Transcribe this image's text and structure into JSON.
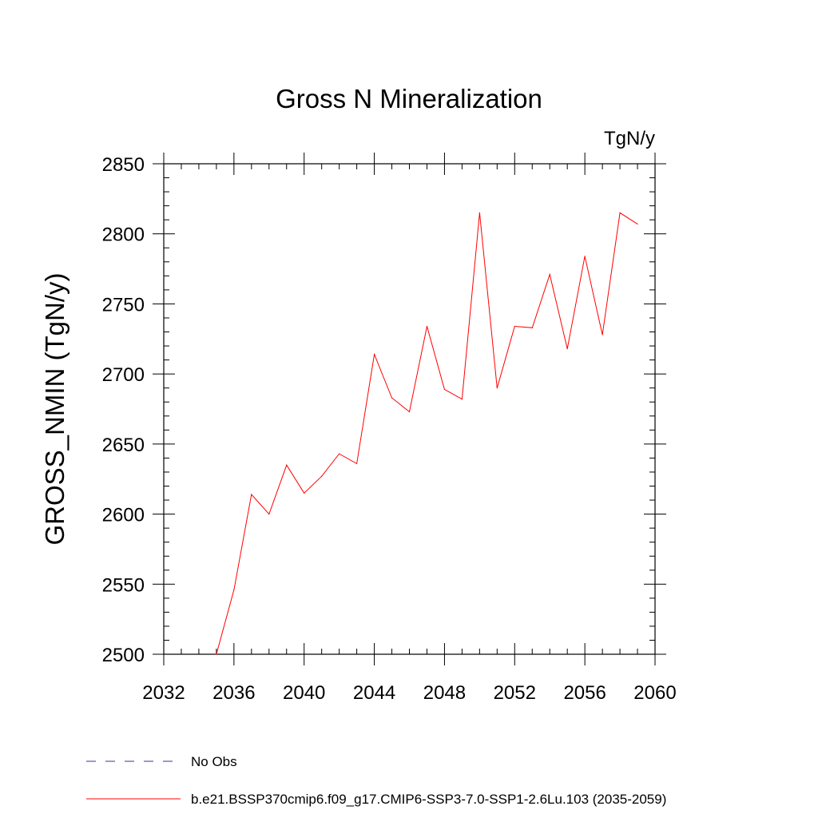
{
  "chart_data": {
    "type": "line",
    "title": "Gross N Mineralization",
    "units_label": "TgN/y",
    "ylabel": "GROSS_NMIN  (TgN/y)",
    "xlabel": "",
    "xlim": [
      2032,
      2060
    ],
    "ylim": [
      2500,
      2850
    ],
    "x_ticks": [
      "2032",
      "2036",
      "2040",
      "2044",
      "2048",
      "2052",
      "2056",
      "2060"
    ],
    "y_ticks": [
      "2500",
      "2550",
      "2600",
      "2650",
      "2700",
      "2750",
      "2800",
      "2850"
    ],
    "grid": false,
    "legend_position": "bottom",
    "colors": {
      "series": "#ff0000",
      "obs": "#3333aa",
      "axis": "#000000"
    },
    "series": [
      {
        "name": "b.e21.BSSP370cmip6.f09_g17.CMIP6-SSP3-7.0-SSP1-2.6Lu.103 (2035-2059)",
        "x": [
          2035,
          2036,
          2037,
          2038,
          2039,
          2040,
          2041,
          2042,
          2043,
          2044,
          2045,
          2046,
          2047,
          2048,
          2049,
          2050,
          2051,
          2052,
          2053,
          2054,
          2055,
          2056,
          2057,
          2058,
          2059
        ],
        "values": [
          2500,
          2546,
          2614,
          2600,
          2635,
          2615,
          2627,
          2643,
          2636,
          2714,
          2683,
          2673,
          2734,
          2689,
          2682,
          2815,
          2690,
          2734,
          2733,
          2771,
          2718,
          2784,
          2728,
          2815,
          2807
        ]
      }
    ],
    "legend": [
      {
        "label": "No Obs",
        "style": "dashed"
      },
      {
        "label": "b.e21.BSSP370cmip6.f09_g17.CMIP6-SSP3-7.0-SSP1-2.6Lu.103 (2035-2059)",
        "style": "solid"
      }
    ]
  }
}
